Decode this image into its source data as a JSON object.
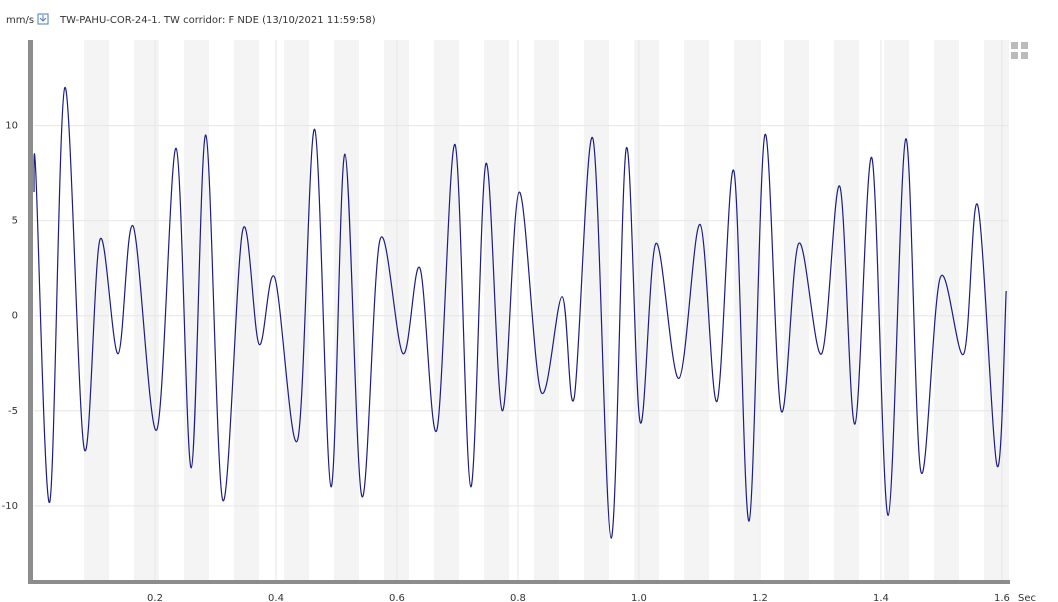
{
  "chart_data": {
    "type": "line",
    "title": "TW-PAHU-COR-24-1.  TW corridor: F NDE (13/10/2021 11:59:58)",
    "y_label": "mm/s",
    "x_label": "Sec",
    "x": [
      0,
      0.003,
      0.026,
      0.051,
      0.083,
      0.109,
      0.139,
      0.164,
      0.203,
      0.235,
      0.26,
      0.284,
      0.312,
      0.345,
      0.372,
      0.398,
      0.436,
      0.464,
      0.491,
      0.514,
      0.542,
      0.572,
      0.61,
      0.638,
      0.666,
      0.696,
      0.722,
      0.747,
      0.774,
      0.802,
      0.838,
      0.873,
      0.893,
      0.924,
      0.954,
      0.979,
      1.002,
      1.028,
      1.066,
      1.101,
      1.129,
      1.157,
      1.182,
      1.208,
      1.235,
      1.264,
      1.302,
      1.332,
      1.357,
      1.385,
      1.412,
      1.441,
      1.466,
      1.498,
      1.537,
      1.56,
      1.592,
      1.607
    ],
    "series": [
      {
        "name": "TW-PAHU-COR-24-1",
        "color": "#1c1c84",
        "values": [
          6.5,
          7.5,
          -9.8,
          12,
          -7,
          4,
          -2,
          4.7,
          -6,
          8.8,
          -8,
          9.5,
          -9.7,
          4.5,
          -1.5,
          2,
          -6.5,
          9.8,
          -9,
          8.5,
          -9.5,
          4,
          -2,
          2.5,
          -6,
          9,
          -9,
          8,
          -5,
          6.5,
          -4,
          1,
          -4.3,
          9.3,
          -11.7,
          8.8,
          -5.6,
          3.8,
          -3.3,
          4.8,
          -4.5,
          7.6,
          -10.8,
          9.5,
          -5,
          3.8,
          -2,
          6.8,
          -5.7,
          8.3,
          -10.5,
          9.3,
          -8.2,
          2,
          -2,
          5.8,
          -7.9,
          1.3
        ]
      }
    ],
    "xlim": [
      0,
      1.61
    ],
    "ylim": [
      -13.9,
      14.5
    ],
    "xticks": [
      0.2,
      0.4,
      0.6,
      0.8,
      1.0,
      1.2,
      1.4,
      1.6
    ],
    "yticks": [
      10,
      5,
      0,
      -5,
      -10
    ],
    "grid": true
  }
}
